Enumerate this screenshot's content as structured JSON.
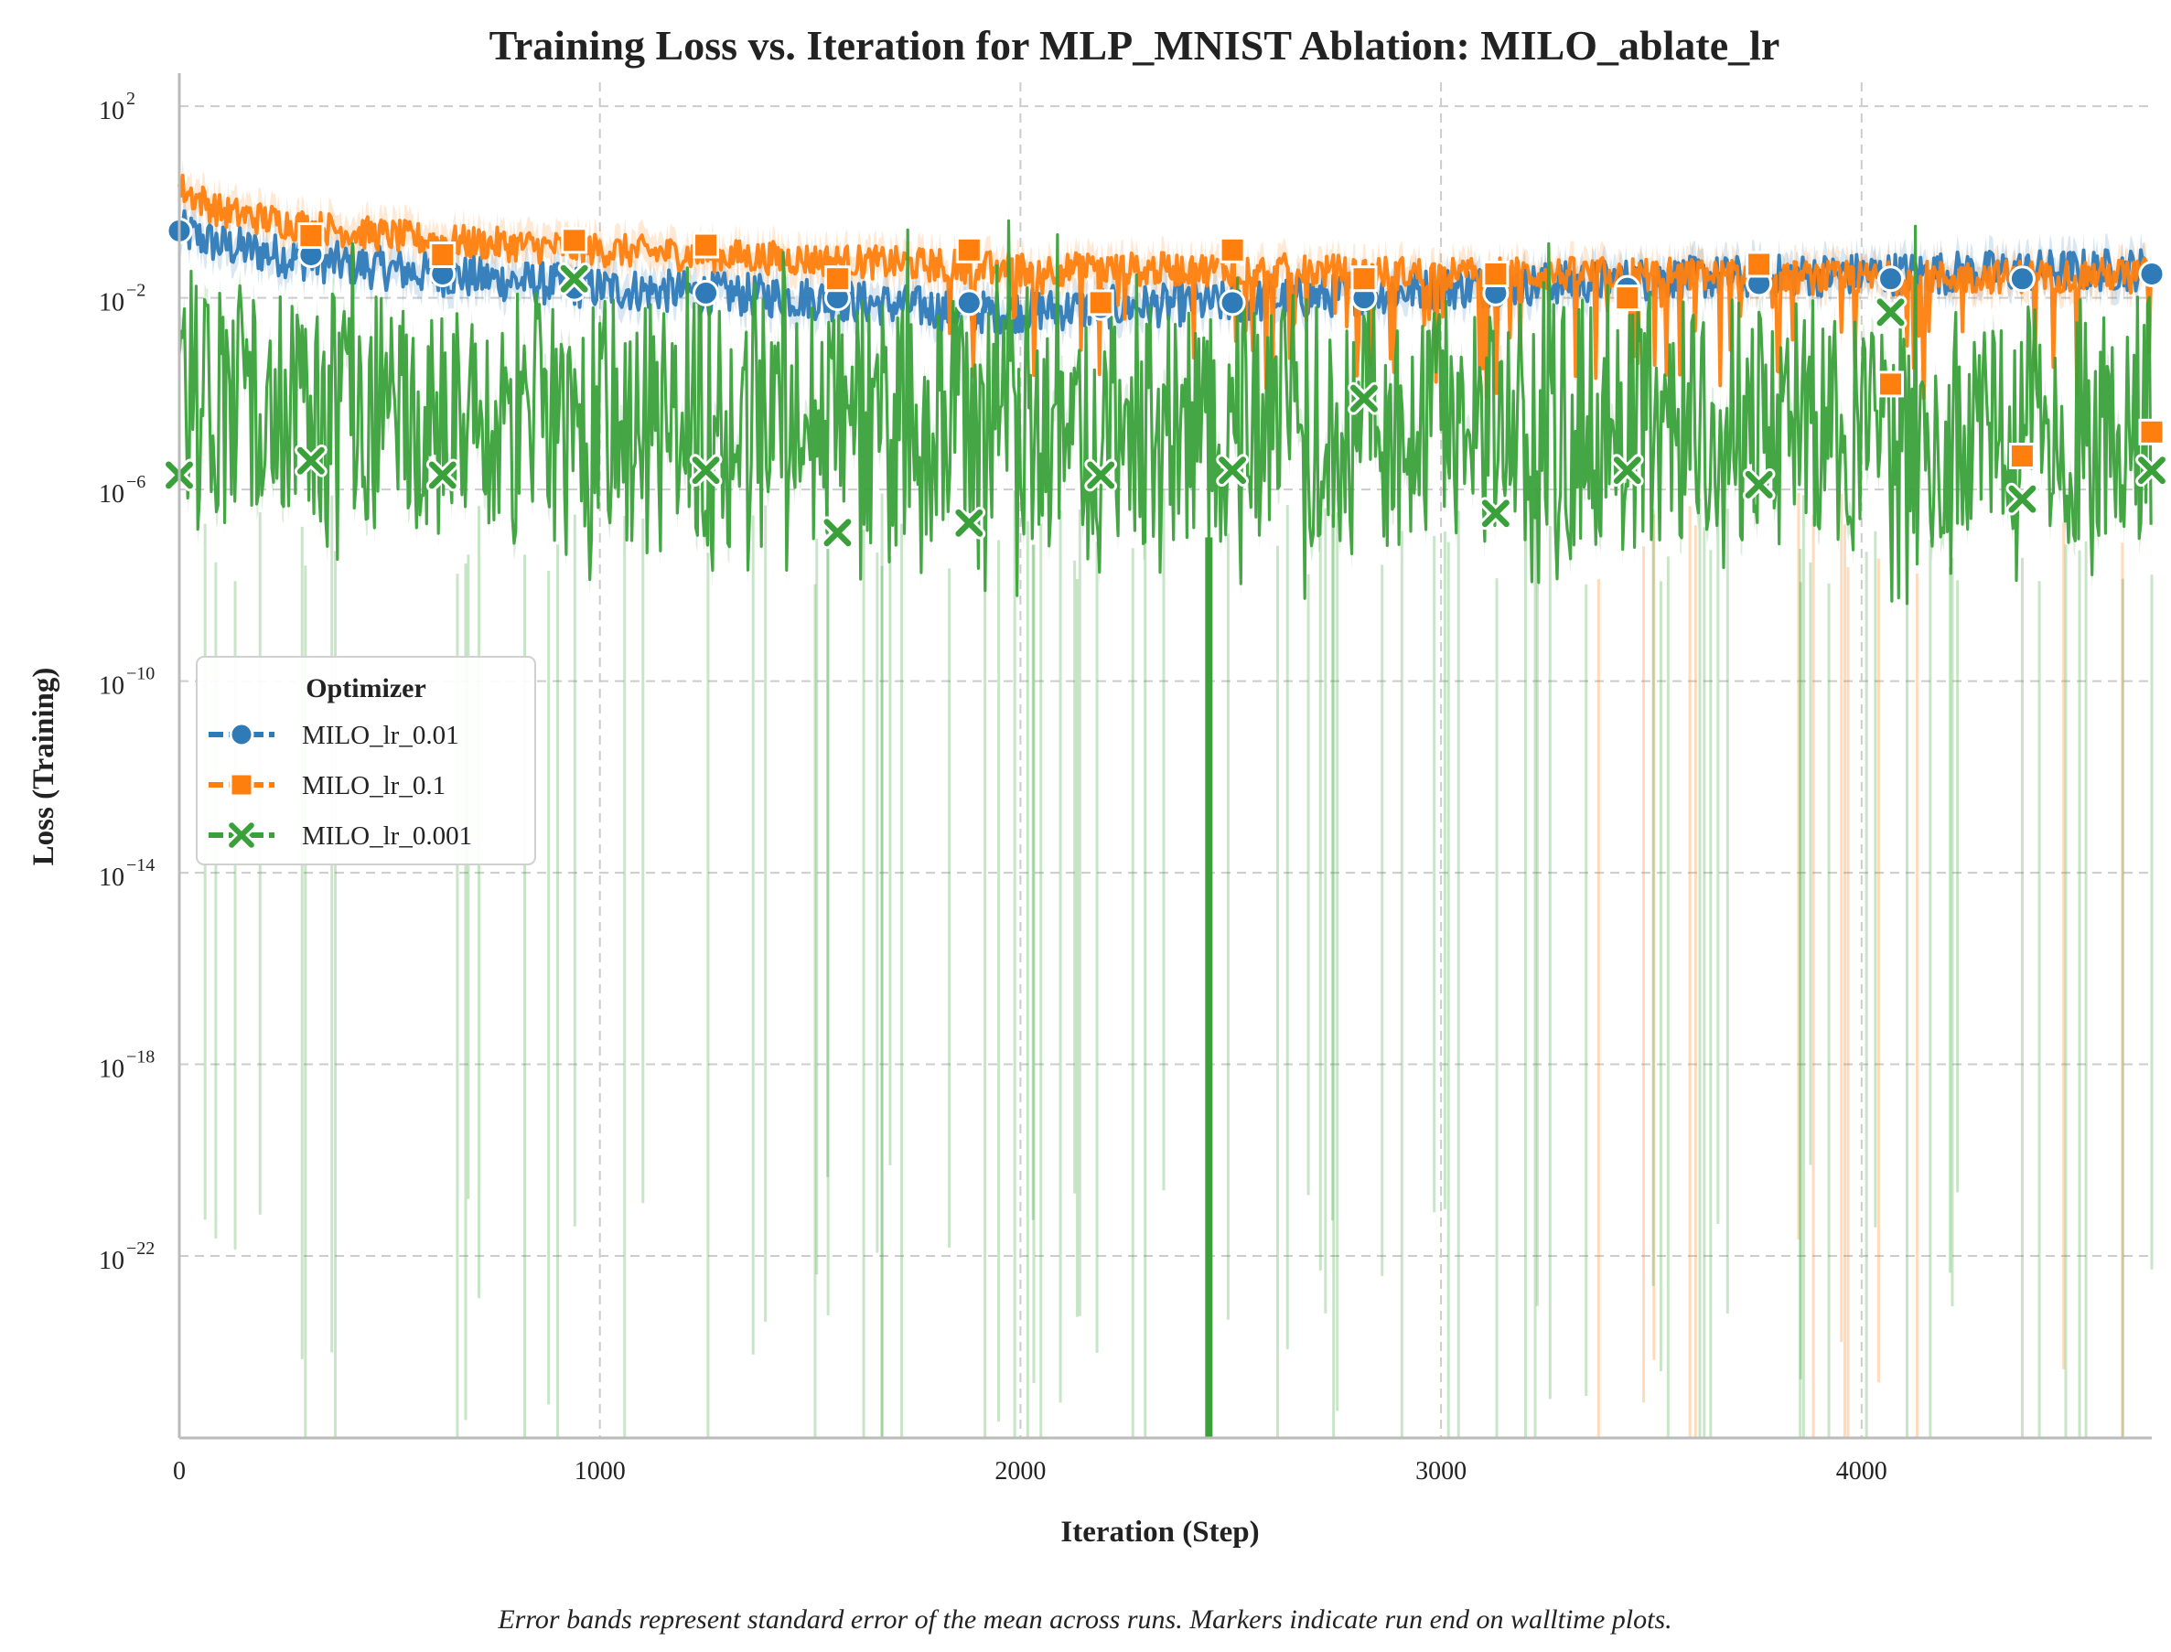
{
  "chart_data": {
    "type": "line",
    "title": "Training Loss vs. Iteration for MLP_MNIST Ablation: MILO_ablate_lr",
    "xlabel": "Iteration (Step)",
    "ylabel": "Loss (Training)",
    "yscale": "log",
    "xlim": [
      0,
      4690
    ],
    "ylim_log10": [
      -25.8,
      2.5
    ],
    "x_ticks": [
      0,
      1000,
      2000,
      3000,
      4000
    ],
    "x_tick_labels": [
      "0",
      "1000",
      "2000",
      "3000",
      "4000"
    ],
    "y_ticks": [
      {
        "base": "10",
        "exp": "2",
        "log10": 2
      },
      {
        "base": "10",
        "exp": "−2",
        "log10": -2
      },
      {
        "base": "10",
        "exp": "−6",
        "log10": -6
      },
      {
        "base": "10",
        "exp": "−10",
        "log10": -10
      },
      {
        "base": "10",
        "exp": "−14",
        "log10": -14
      },
      {
        "base": "10",
        "exp": "−18",
        "log10": -18
      },
      {
        "base": "10",
        "exp": "−22",
        "log10": -22
      }
    ],
    "grid": true,
    "legend_title": "Optimizer",
    "legend_position": "center-left",
    "series": [
      {
        "name": "MILO_lr_0.01",
        "color": "#2f7bb8",
        "marker": "circle",
        "mean_log10_points": [
          [
            0,
            -0.6
          ],
          [
            100,
            -0.9
          ],
          [
            300,
            -1.2
          ],
          [
            600,
            -1.5
          ],
          [
            1000,
            -1.8
          ],
          [
            1500,
            -2.0
          ],
          [
            1900,
            -2.3
          ],
          [
            2500,
            -2.1
          ],
          [
            3000,
            -1.8
          ],
          [
            3500,
            -1.6
          ],
          [
            4000,
            -1.5
          ],
          [
            4690,
            -1.4
          ]
        ],
        "marker_x": [
          0,
          313,
          626,
          939,
          1252,
          1565,
          1878,
          2191,
          2504,
          2817,
          3130,
          3443,
          3756,
          4069,
          4382,
          4690
        ],
        "marker_log10": [
          -0.6,
          -1.1,
          -1.5,
          -1.8,
          -1.9,
          -2.0,
          -2.1,
          -2.2,
          -2.1,
          -2.0,
          -1.9,
          -1.8,
          -1.7,
          -1.6,
          -1.6,
          -1.5
        ]
      },
      {
        "name": "MILO_lr_0.1",
        "color": "#ff7f0e",
        "marker": "square",
        "mean_log10_points": [
          [
            0,
            0.3
          ],
          [
            100,
            -0.2
          ],
          [
            300,
            -0.5
          ],
          [
            600,
            -0.8
          ],
          [
            1000,
            -1.0
          ],
          [
            1500,
            -1.2
          ],
          [
            2000,
            -1.4
          ],
          [
            2500,
            -1.4
          ],
          [
            3000,
            -1.5
          ],
          [
            3500,
            -1.5
          ],
          [
            4000,
            -1.6
          ],
          [
            4690,
            -1.5
          ]
        ],
        "marker_x": [
          313,
          626,
          939,
          1252,
          1565,
          1878,
          2191,
          2504,
          2817,
          3130,
          3443,
          3756,
          4069,
          4382,
          4690
        ],
        "marker_log10": [
          -0.7,
          -1.1,
          -0.8,
          -0.9,
          -1.6,
          -1.0,
          -2.1,
          -1.0,
          -1.6,
          -1.5,
          -2.0,
          -1.3,
          -3.8,
          -5.3,
          -4.8
        ]
      },
      {
        "name": "MILO_lr_0.001",
        "color": "#3aa13a",
        "marker": "x",
        "mean_log10_points": [
          [
            0,
            -4.0
          ],
          [
            500,
            -4.5
          ],
          [
            1000,
            -4.6
          ],
          [
            2000,
            -4.6
          ],
          [
            3000,
            -4.6
          ],
          [
            4000,
            -4.6
          ],
          [
            4690,
            -4.6
          ]
        ],
        "marker_x": [
          0,
          313,
          626,
          939,
          1252,
          1565,
          1878,
          2191,
          2504,
          2817,
          3130,
          3443,
          3756,
          4069,
          4382,
          4690
        ],
        "marker_log10": [
          -5.7,
          -5.4,
          -5.7,
          -1.6,
          -5.6,
          -6.9,
          -6.7,
          -5.7,
          -5.6,
          -4.1,
          -6.5,
          -5.6,
          -5.9,
          -2.3,
          -6.2,
          -5.6
        ]
      }
    ],
    "caption": "Error bands represent standard error of the mean across runs. Markers indicate run end on walltime plots."
  }
}
